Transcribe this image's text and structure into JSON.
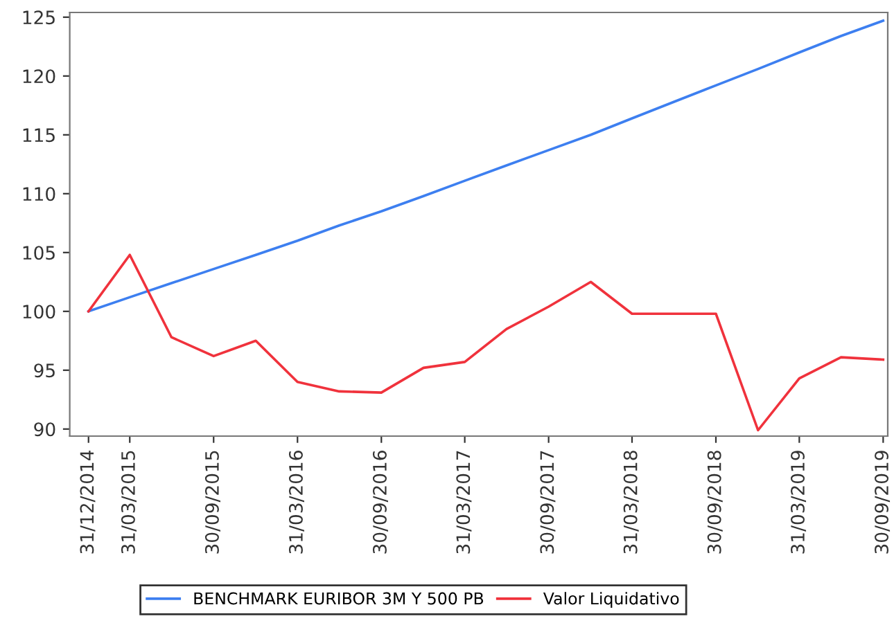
{
  "chart_data": {
    "type": "line",
    "x": [
      "2014-12-31",
      "2015-03-31",
      "2015-06-30",
      "2015-09-30",
      "2015-12-31",
      "2016-03-31",
      "2016-06-30",
      "2016-09-30",
      "2016-12-31",
      "2017-03-31",
      "2017-06-30",
      "2017-09-30",
      "2017-12-31",
      "2018-03-31",
      "2018-06-30",
      "2018-09-30",
      "2018-12-31",
      "2019-03-31",
      "2019-06-30",
      "2019-09-30"
    ],
    "series": [
      {
        "name": "BENCHMARK EURIBOR 3M Y 500 PB",
        "color": "#3d7ff0",
        "values": [
          100,
          101.2,
          102.4,
          103.6,
          104.8,
          106.0,
          107.3,
          108.5,
          109.8,
          111.1,
          112.4,
          113.7,
          115.0,
          116.4,
          117.8,
          119.2,
          120.6,
          122.0,
          123.4,
          124.7
        ]
      },
      {
        "name": "Valor Liquidativo",
        "color": "#f0323c",
        "values": [
          100,
          104.8,
          97.8,
          96.2,
          97.5,
          94.0,
          93.2,
          93.1,
          95.2,
          95.7,
          98.5,
          100.4,
          102.5,
          99.8,
          99.8,
          99.8,
          89.9,
          94.3,
          96.1,
          95.9
        ]
      }
    ],
    "xlim": [
      "2014-11-20",
      "2019-10-10"
    ],
    "xticks": [
      {
        "value": "2014-12-31",
        "label": "31/12/2014"
      },
      {
        "value": "2015-03-31",
        "label": "31/03/2015"
      },
      {
        "value": "2015-09-30",
        "label": "30/09/2015"
      },
      {
        "value": "2016-03-31",
        "label": "31/03/2016"
      },
      {
        "value": "2016-09-30",
        "label": "30/09/2016"
      },
      {
        "value": "2017-03-31",
        "label": "31/03/2017"
      },
      {
        "value": "2017-09-30",
        "label": "30/09/2017"
      },
      {
        "value": "2018-03-31",
        "label": "31/03/2018"
      },
      {
        "value": "2018-09-30",
        "label": "30/09/2018"
      },
      {
        "value": "2019-03-31",
        "label": "31/03/2019"
      },
      {
        "value": "2019-09-30",
        "label": "30/09/2019"
      }
    ],
    "ylim": [
      89.4,
      125.4
    ],
    "yticks": [
      90,
      95,
      100,
      105,
      110,
      115,
      120,
      125
    ],
    "grid": false,
    "legend": "bottom",
    "marker": "none",
    "line_style": "solid"
  }
}
